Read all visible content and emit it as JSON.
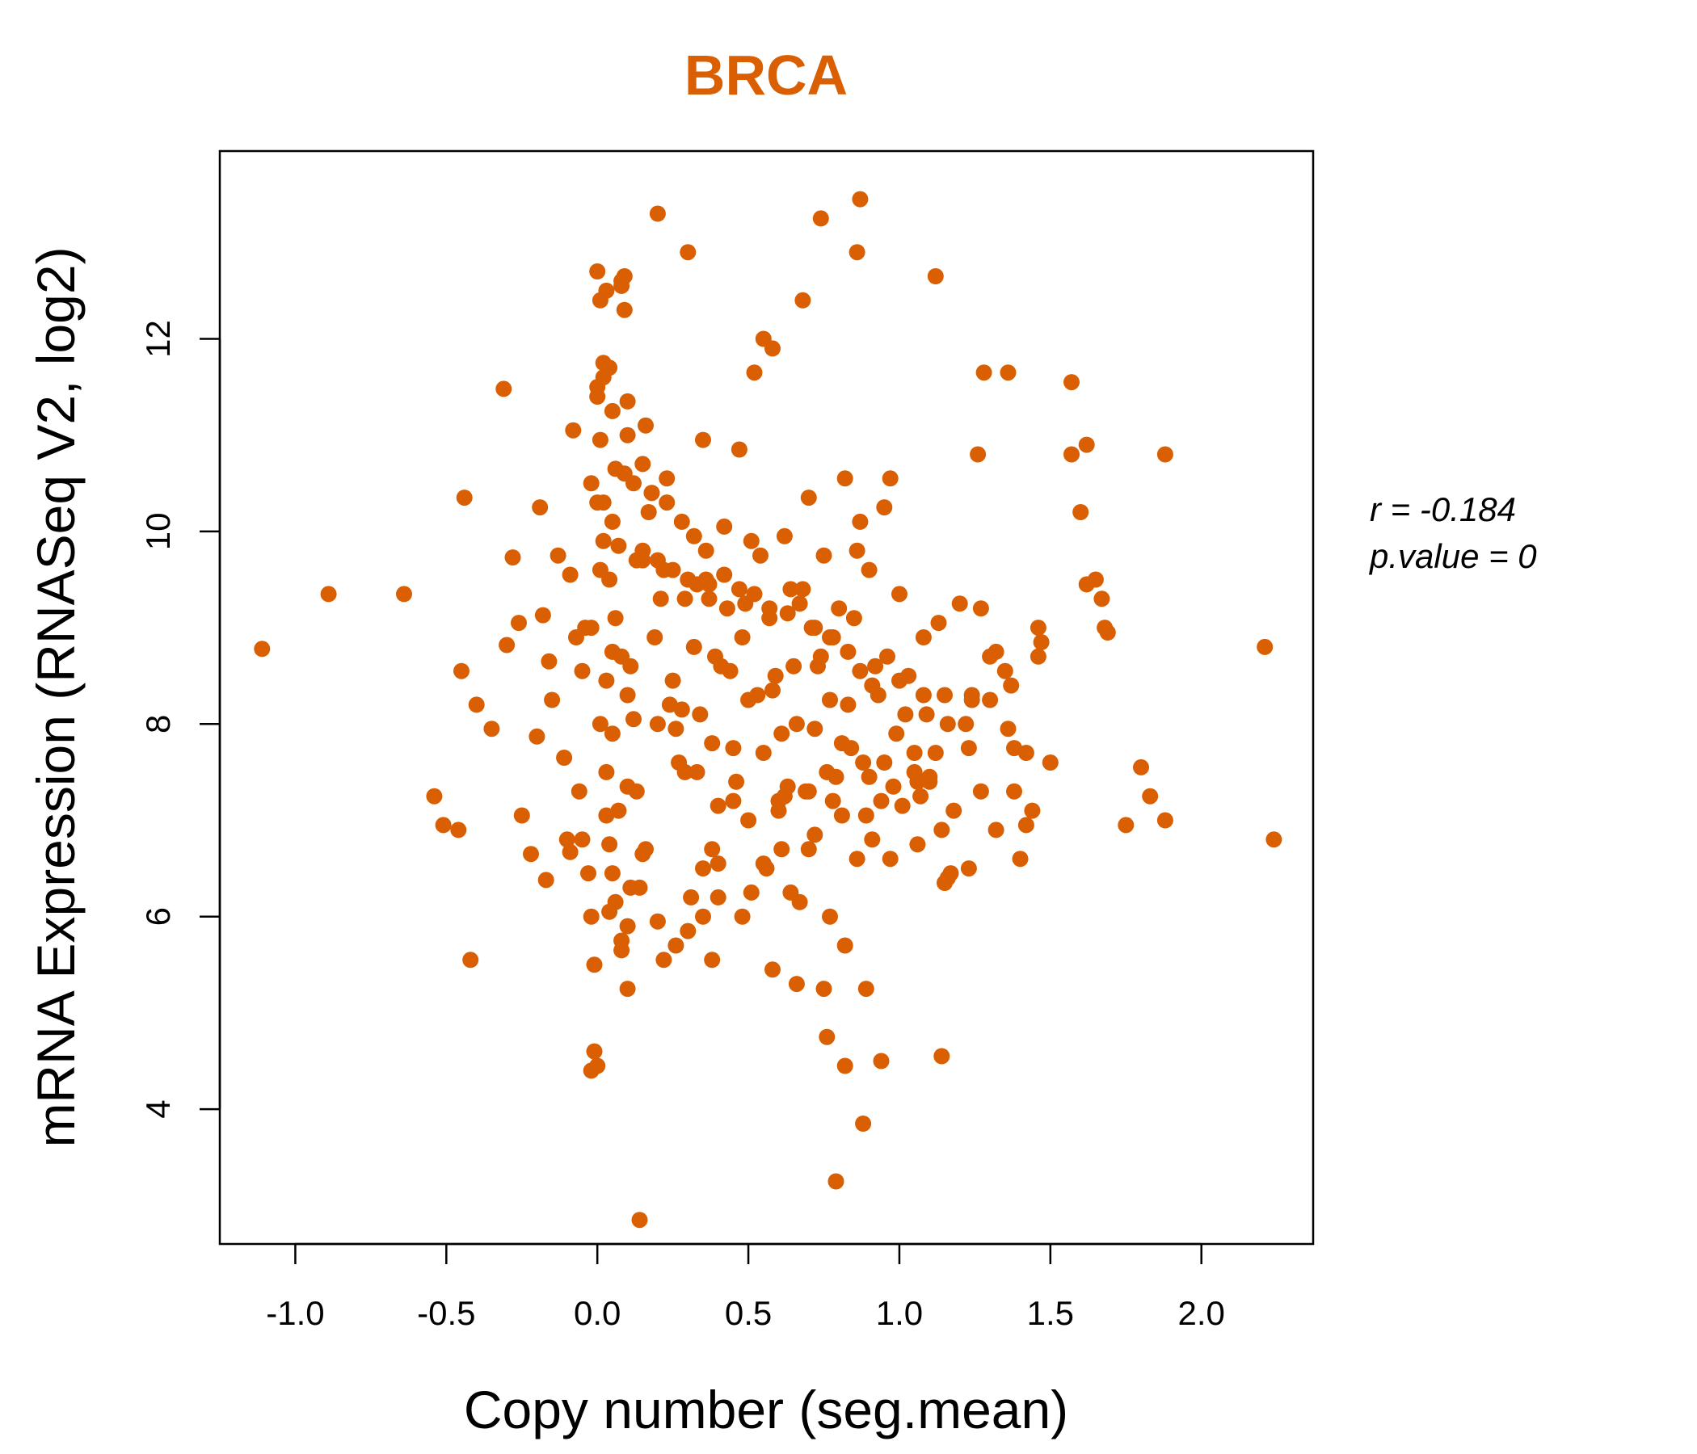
{
  "chart_data": {
    "type": "scatter",
    "title": "BRCA",
    "xlabel": "Copy number (seg.mean)",
    "ylabel": "mRNA Expression (RNASeq V2, log2)",
    "xlim": [
      -1.25,
      2.37
    ],
    "ylim": [
      2.6,
      13.95
    ],
    "x_ticks": [
      -1.0,
      -0.5,
      0.0,
      0.5,
      1.0,
      1.5,
      2.0
    ],
    "x_tick_labels": [
      "-1.0",
      "-0.5",
      "0.0",
      "0.5",
      "1.0",
      "1.5",
      "2.0"
    ],
    "y_ticks": [
      4,
      6,
      8,
      10,
      12
    ],
    "y_tick_labels": [
      "4",
      "6",
      "8",
      "10",
      "12"
    ],
    "grid": false,
    "point_color": "#d95f02",
    "annotation": {
      "r_label": "r = -0.184",
      "p_label": "p.value = 0"
    },
    "series": [
      {
        "x": [
          -1.11,
          -0.89,
          -0.64,
          -0.54,
          -0.51,
          -0.46,
          -0.45,
          -0.44,
          -0.42,
          -0.4,
          -0.35,
          -0.31,
          -0.3,
          -0.28,
          -0.26,
          -0.25,
          -0.22,
          -0.2,
          -0.19,
          -0.18,
          -0.17,
          -0.16,
          -0.15,
          -0.13,
          -0.11,
          -0.1,
          -0.09,
          -0.09,
          -0.08,
          -0.07,
          -0.06,
          -0.05,
          -0.05,
          -0.04,
          -0.03,
          -0.02,
          -0.02,
          -0.01,
          0.0,
          0.0,
          0.01,
          0.01,
          0.02,
          0.02,
          0.03,
          0.03,
          0.04,
          0.04,
          0.05,
          0.05,
          0.06,
          0.06,
          0.07,
          0.08,
          0.08,
          0.09,
          0.1,
          0.1,
          0.11,
          0.12,
          0.13,
          0.14,
          0.15,
          0.16,
          0.18,
          0.2,
          0.21,
          0.23,
          0.25,
          0.26,
          0.28,
          0.3,
          0.31,
          0.33,
          0.35,
          0.37,
          0.39,
          0.4,
          0.42,
          0.44,
          0.45,
          0.47,
          0.49,
          0.5,
          0.52,
          0.54,
          0.56,
          0.58,
          0.6,
          0.62,
          0.63,
          0.65,
          0.67,
          0.68,
          0.7,
          0.72,
          0.74,
          0.75,
          0.77,
          0.79,
          0.8,
          0.82,
          0.84,
          0.86,
          0.87,
          0.89,
          0.9,
          0.93,
          0.95,
          0.97,
          1.0,
          1.02,
          1.05,
          1.08,
          1.1,
          1.13,
          1.16,
          1.2,
          1.23,
          1.27,
          1.3,
          1.35,
          1.38,
          1.42,
          1.46,
          1.5,
          1.57,
          1.62,
          1.68,
          1.75,
          1.8,
          1.83,
          1.88,
          2.21,
          2.24,
          0.0,
          0.02,
          0.04,
          0.06,
          0.08,
          0.1,
          0.05,
          0.03,
          0.07,
          0.09,
          0.01,
          -0.02,
          0.11,
          0.13,
          0.15,
          0.17,
          0.19,
          0.22,
          0.24,
          0.27,
          0.29,
          0.32,
          0.34,
          0.36,
          0.38,
          0.41,
          0.43,
          0.46,
          0.48,
          0.51,
          0.53,
          0.55,
          0.57,
          0.59,
          0.61,
          0.64,
          0.66,
          0.69,
          0.71,
          0.73,
          0.76,
          0.78,
          0.81,
          0.83,
          0.85,
          0.88,
          0.91,
          0.94,
          0.96,
          0.99,
          1.03,
          1.06,
          1.09,
          1.12,
          1.15,
          1.18,
          0.2,
          0.29,
          0.74,
          0.86,
          1.12,
          0.68,
          0.87,
          0.01,
          0.02,
          0.09,
          0.03,
          0.08,
          0.55,
          0.58,
          1.36,
          1.57,
          1.28,
          1.88,
          1.26,
          0.95,
          0.87,
          1.62,
          1.6,
          1.65,
          1.67,
          1.69,
          1.47,
          1.46,
          1.32,
          1.3,
          1.24,
          1.22,
          1.36,
          1.38,
          1.37,
          1.24,
          1.27,
          1.44,
          1.32,
          0.77,
          0.82,
          0.75,
          0.89,
          0.82,
          0.79,
          0.76,
          0.88,
          0.94,
          1.15,
          1.17,
          1.14,
          0.66,
          0.64,
          0.58,
          0.35,
          0.4,
          0.38,
          0.3,
          0.26,
          0.22,
          0.2,
          0.1,
          0.05,
          0.04,
          0.0,
          -0.01,
          -0.02,
          0.1,
          0.08,
          0.14,
          0.16,
          0.35,
          0.38,
          0.51,
          0.48,
          0.55,
          0.61,
          0.7,
          0.72,
          0.86,
          0.91,
          0.97,
          1.06,
          1.14,
          1.16,
          1.23,
          1.4,
          1.42,
          0.4,
          0.45,
          0.5,
          0.6,
          0.62,
          0.7,
          0.78,
          0.81,
          0.9,
          0.98,
          1.01,
          1.05,
          1.07,
          1.1,
          0.15,
          0.2,
          0.25,
          0.3,
          0.33,
          0.37,
          0.42,
          0.47,
          0.52,
          0.57,
          0.63,
          0.67,
          0.72,
          0.77,
          0.83,
          0.92,
          1.0,
          1.08,
          0.0,
          0.05,
          0.1,
          0.15,
          0.12,
          0.18,
          0.23,
          0.28,
          0.32,
          0.36
        ],
        "y": [
          8.78,
          9.35,
          9.35,
          7.25,
          6.95,
          6.9,
          8.55,
          10.35,
          5.55,
          8.2,
          7.95,
          11.48,
          8.82,
          9.73,
          9.05,
          7.05,
          6.65,
          7.87,
          10.25,
          9.13,
          6.38,
          8.65,
          8.25,
          9.75,
          7.65,
          6.8,
          9.55,
          6.67,
          11.05,
          8.9,
          7.3,
          8.55,
          6.8,
          9.0,
          6.45,
          10.5,
          6.0,
          5.5,
          12.7,
          11.5,
          10.95,
          9.6,
          11.6,
          10.3,
          8.45,
          7.05,
          6.75,
          11.7,
          10.1,
          8.75,
          6.15,
          10.65,
          9.85,
          5.75,
          12.55,
          12.65,
          11.35,
          7.35,
          6.3,
          8.05,
          9.7,
          2.85,
          6.65,
          11.1,
          10.4,
          13.3,
          9.3,
          10.55,
          8.45,
          7.95,
          8.15,
          12.9,
          6.2,
          7.5,
          10.95,
          9.45,
          8.7,
          7.15,
          10.05,
          8.55,
          7.75,
          10.85,
          9.25,
          8.25,
          11.65,
          9.75,
          6.5,
          8.35,
          7.2,
          9.95,
          7.35,
          8.6,
          6.15,
          9.4,
          10.35,
          7.95,
          8.7,
          9.75,
          8.25,
          7.45,
          9.2,
          10.55,
          7.75,
          9.8,
          8.55,
          7.05,
          9.6,
          8.3,
          7.6,
          10.55,
          9.35,
          8.1,
          7.7,
          8.9,
          7.45,
          9.05,
          8.0,
          9.25,
          7.75,
          9.2,
          8.25,
          8.55,
          7.3,
          7.7,
          8.7,
          7.6,
          10.8,
          9.45,
          9.0,
          6.95,
          7.55,
          7.25,
          7.0,
          8.8,
          6.8,
          10.3,
          9.9,
          9.5,
          9.1,
          8.7,
          8.3,
          7.9,
          7.5,
          7.1,
          10.6,
          8.0,
          9.0,
          8.6,
          7.3,
          9.7,
          10.2,
          8.9,
          9.6,
          8.2,
          7.6,
          9.3,
          8.8,
          8.1,
          9.5,
          7.8,
          8.6,
          9.2,
          7.4,
          8.9,
          9.9,
          8.3,
          7.7,
          9.1,
          8.5,
          7.9,
          9.4,
          8.0,
          7.3,
          9.0,
          8.6,
          7.5,
          8.9,
          7.8,
          8.2,
          9.1,
          7.6,
          8.4,
          7.2,
          8.7,
          7.9,
          8.5,
          7.4,
          8.1,
          7.7,
          8.3,
          7.1,
          8.0,
          7.5,
          13.25,
          12.9,
          12.65,
          12.4,
          13.45,
          12.4,
          11.75,
          12.3,
          12.5,
          12.6,
          12.0,
          11.9,
          11.65,
          11.55,
          11.65,
          10.8,
          10.8,
          10.25,
          10.1,
          10.9,
          10.2,
          9.5,
          9.3,
          8.95,
          8.85,
          9.0,
          8.75,
          8.7,
          8.3,
          8.0,
          7.95,
          7.75,
          8.4,
          8.25,
          7.3,
          7.1,
          6.9,
          6.0,
          5.7,
          5.25,
          5.25,
          4.45,
          3.25,
          4.75,
          3.85,
          4.5,
          6.35,
          6.45,
          4.55,
          5.3,
          6.25,
          5.45,
          6.0,
          6.2,
          5.55,
          5.85,
          5.7,
          5.55,
          5.95,
          5.9,
          6.45,
          6.05,
          4.45,
          4.6,
          4.4,
          5.25,
          5.65,
          6.3,
          6.7,
          6.5,
          6.7,
          6.25,
          6.0,
          6.55,
          6.7,
          6.7,
          6.85,
          6.6,
          6.8,
          6.6,
          6.75,
          6.9,
          6.4,
          6.5,
          6.6,
          6.95,
          6.55,
          7.2,
          7.0,
          7.1,
          7.25,
          7.3,
          7.2,
          7.05,
          7.45,
          7.35,
          7.15,
          7.5,
          7.25,
          7.4,
          9.8,
          9.7,
          9.6,
          9.5,
          9.45,
          9.3,
          9.55,
          9.4,
          9.35,
          9.2,
          9.15,
          9.25,
          9.0,
          8.9,
          8.75,
          8.6,
          8.45,
          8.3,
          11.4,
          11.25,
          11.0,
          10.7,
          10.5,
          10.4,
          10.3,
          10.1,
          9.95,
          9.8
        ]
      }
    ]
  }
}
